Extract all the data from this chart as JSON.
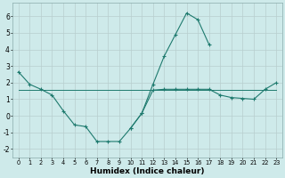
{
  "xlabel": "Humidex (Indice chaleur)",
  "line_color": "#1e7a6e",
  "bg_color": "#ceeaea",
  "grid_color": "#b8cece",
  "ylim": [
    -2.5,
    6.8
  ],
  "yticks": [
    -2,
    -1,
    0,
    1,
    2,
    3,
    4,
    5,
    6
  ],
  "xlim": [
    -0.5,
    23.5
  ],
  "curve1_x": [
    0,
    1,
    2,
    3,
    4,
    5,
    6,
    7,
    8,
    9,
    10,
    11,
    12,
    13,
    14,
    15,
    16,
    17,
    18,
    19,
    20,
    21,
    22,
    23
  ],
  "curve1_y": [
    2.65,
    1.9,
    1.6,
    1.25,
    0.3,
    -0.55,
    -0.65,
    -1.55,
    -1.55,
    -1.55,
    -0.75,
    0.15,
    1.55,
    1.6,
    1.6,
    1.6,
    1.6,
    1.6,
    1.25,
    1.1,
    1.05,
    1.0,
    1.6,
    2.0
  ],
  "curve2_x": [
    10,
    11,
    12,
    13,
    14,
    15,
    16,
    17
  ],
  "curve2_y": [
    -0.75,
    0.15,
    1.9,
    3.6,
    4.9,
    6.2,
    5.8,
    4.3
  ],
  "curve3_x": [
    0,
    1,
    2,
    3,
    4,
    5,
    6,
    7,
    8,
    9,
    10,
    11,
    12,
    13,
    14,
    15,
    16,
    17,
    18,
    19,
    20,
    21,
    22,
    23
  ],
  "curve3_y": [
    1.55,
    1.55,
    1.55,
    1.55,
    1.55,
    1.55,
    1.55,
    1.55,
    1.55,
    1.55,
    1.55,
    1.55,
    1.55,
    1.55,
    1.55,
    1.55,
    1.55,
    1.55,
    1.55,
    1.55,
    1.55,
    1.55,
    1.55,
    1.55
  ]
}
